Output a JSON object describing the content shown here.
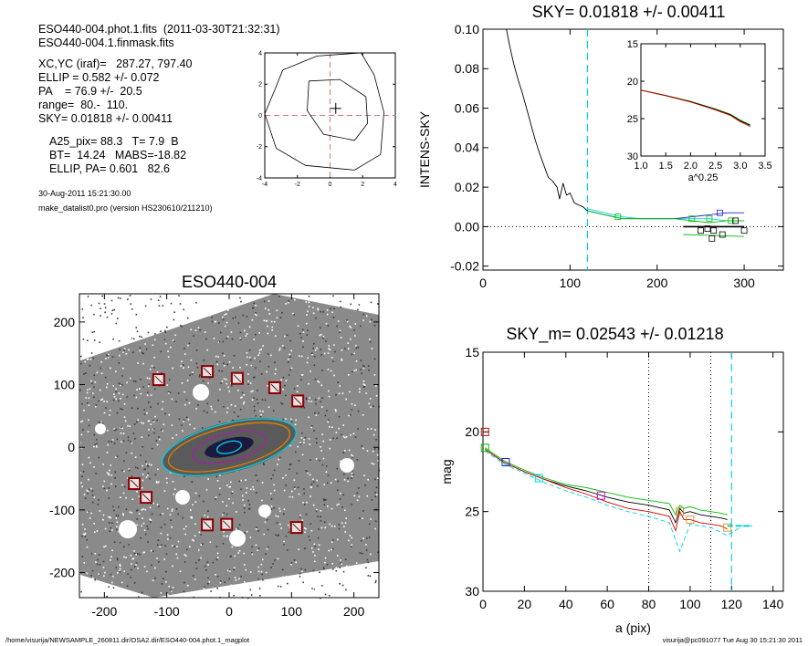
{
  "header": {
    "file_line": "ESO440-004.phot.1.fits  (2011-03-30T21:32:31)",
    "mask_line": "ESO440-004.1.finmask.fits",
    "xcyc": "XC,YC (iraf)=   287.27, 797.40",
    "ellip": "ELLIP = 0.582 +/- 0.072",
    "pa": "PA    = 76.9 +/-  20.5",
    "range": "range=  80.-  110.",
    "sky": "SKY= 0.01818 +/- 0.00411",
    "a25": "A25_pix= 88.3   T= 7.9  B",
    "bt": "BT=  14.24   MABS=-18.82",
    "ellip_pa": "ELLIP, PA= 0.601   82.6",
    "date": "30-Aug-2011 15:21:30.00",
    "program": "make_datalist0.pro (version HS230610/211210)"
  },
  "footer": {
    "path": "/home/visurija/NEWSAMPLE_260811.dir/OSA2.dir/ESO440-004.phot.1_magplot",
    "user": "visurija@pc091077  Tue Aug 30 15:21:30 2011"
  },
  "colors": {
    "axis": "#000000",
    "dashed_red": "#e07070",
    "cyan": "#00d0e0",
    "green": "#00c000",
    "red": "#d00000",
    "blue": "#2020d0",
    "magenta": "#d000d0",
    "orange": "#e08000"
  },
  "chart_data": [
    {
      "id": "center-contour",
      "type": "line",
      "title": "",
      "xlim": [
        -4,
        4
      ],
      "ylim": [
        -4,
        4
      ],
      "xticks": [
        -4,
        -2,
        0,
        2,
        4
      ],
      "yticks": [
        -4,
        -2,
        0,
        2,
        4
      ],
      "contours": [
        [
          [
            -1.3,
            2.2
          ],
          [
            0.6,
            2.3
          ],
          [
            2.2,
            1.2
          ],
          [
            2.3,
            -0.5
          ],
          [
            1.5,
            -1.6
          ],
          [
            -0.4,
            -1.2
          ],
          [
            -1.4,
            0.3
          ],
          [
            -1.3,
            2.2
          ]
        ],
        [
          [
            -2.9,
            2.9
          ],
          [
            -0.8,
            3.8
          ],
          [
            1.9,
            4
          ],
          [
            2.7,
            2.6
          ],
          [
            3.3,
            0.2
          ],
          [
            3.1,
            -2.5
          ],
          [
            1.5,
            -3.5
          ],
          [
            -1.5,
            -3.2
          ],
          [
            -3.3,
            -2.1
          ],
          [
            -4,
            0.1
          ],
          [
            -3.4,
            1.6
          ],
          [
            -2.9,
            2.9
          ]
        ]
      ],
      "center": [
        0.35,
        0.45
      ]
    },
    {
      "id": "sky-profile",
      "type": "line",
      "title": "SKY= 0.01818 +/- 0.00411",
      "xlabel": "",
      "ylabel": "INTENS-SKY",
      "xlim": [
        0,
        345
      ],
      "ylim": [
        -0.022,
        0.1
      ],
      "xticks": [
        0,
        100,
        200,
        300
      ],
      "yticks": [
        -0.02,
        0.0,
        0.02,
        0.04,
        0.06,
        0.08,
        0.1
      ],
      "ytick_labels": [
        "-0.02",
        "0.00",
        "0.02",
        "0.04",
        "0.06",
        "0.08",
        "0.10"
      ],
      "sky_marker_x": 120,
      "series": [
        {
          "x": [
            27,
            30,
            35,
            40,
            45,
            50,
            55,
            60,
            65,
            70,
            75,
            80,
            85,
            88,
            92,
            96,
            100,
            105,
            110,
            115,
            120
          ],
          "y": [
            0.1,
            0.093,
            0.083,
            0.075,
            0.068,
            0.06,
            0.052,
            0.044,
            0.037,
            0.031,
            0.025,
            0.023,
            0.02,
            0.014,
            0.022,
            0.016,
            0.017,
            0.012,
            0.011,
            0.01,
            0.008
          ]
        },
        {
          "x": [
            120,
            140,
            160,
            180,
            200,
            220,
            240,
            260,
            280,
            300
          ],
          "y": [
            0.009,
            0.007,
            0.005,
            0.004,
            0.004,
            0.004,
            0.004,
            0.004,
            0.003,
            0.003
          ],
          "color": "cyan"
        },
        {
          "x": [
            120,
            140,
            160,
            180,
            200,
            220,
            240,
            260,
            280,
            300
          ],
          "y": [
            0.008,
            0.006,
            0.004,
            0.004,
            0.004,
            0.004,
            0.005,
            0.006,
            0.007,
            0.007
          ],
          "color": "blue"
        },
        {
          "x": [
            120,
            140,
            160,
            180,
            200,
            220,
            240,
            260,
            280,
            300
          ],
          "y": [
            0.008,
            0.006,
            0.004,
            0.004,
            0.004,
            0.004,
            0.003,
            0.002,
            0.003,
            0.003
          ],
          "color": "green"
        },
        {
          "x": [
            230,
            300
          ],
          "y": [
            0.0,
            0.0
          ],
          "color": "black"
        },
        {
          "x": [
            230,
            300
          ],
          "y": [
            -0.004,
            -0.005
          ],
          "color": "green"
        }
      ],
      "inset": {
        "xlabel": "a^0.25",
        "xlim": [
          1.0,
          3.5
        ],
        "ylim": [
          15,
          30
        ],
        "xticks": [
          1.0,
          1.5,
          2.0,
          2.5,
          3.0,
          3.5
        ],
        "xtick_labels": [
          "1.0",
          "1.5",
          "2.0",
          "2.5",
          "3.0",
          "3.5"
        ],
        "yticks": [
          15,
          20,
          25,
          30
        ],
        "x": [
          1.0,
          1.5,
          2.0,
          2.5,
          2.8,
          3.0,
          3.2
        ],
        "y": [
          21.2,
          21.9,
          22.7,
          23.7,
          24.4,
          25.2,
          25.8
        ]
      }
    },
    {
      "id": "galaxy-image",
      "type": "scatter",
      "title": "ESO440-004",
      "xlim": [
        -240,
        240
      ],
      "ylim": [
        -240,
        245
      ],
      "xticks": [
        -200,
        -100,
        0,
        100,
        200
      ],
      "yticks": [
        -200,
        -100,
        0,
        100,
        200
      ],
      "mask_boxes": [
        [
          -113,
          108
        ],
        [
          -35,
          121
        ],
        [
          13,
          110
        ],
        [
          73,
          95
        ],
        [
          110,
          74
        ],
        [
          -152,
          -58
        ],
        [
          -133,
          -80
        ],
        [
          -35,
          -124
        ],
        [
          -4,
          -123
        ],
        [
          108,
          -128
        ]
      ],
      "ellipses": [
        {
          "a": 110,
          "b": 38,
          "pa_deg": -14,
          "color": "cyan"
        },
        {
          "a": 100,
          "b": 32,
          "pa_deg": -14,
          "color": "orange"
        },
        {
          "a": 60,
          "b": 22,
          "pa_deg": -14,
          "color": "magenta"
        },
        {
          "a": 20,
          "b": 9,
          "pa_deg": -14,
          "color": "cyan"
        }
      ]
    },
    {
      "id": "mag-profile",
      "type": "line",
      "title": "SKY_m=  0.02543 +/- 0.01218",
      "xlabel": "a (pix)",
      "ylabel": "mag",
      "xlim": [
        0,
        145
      ],
      "ylim": [
        15,
        30
      ],
      "xticks": [
        0,
        20,
        40,
        60,
        80,
        100,
        120,
        140
      ],
      "yticks": [
        15,
        20,
        25,
        30
      ],
      "dotted_x": [
        80,
        110
      ],
      "dashed_x": 120,
      "markers": [
        {
          "x": 1,
          "y": 20.0,
          "color": "red"
        },
        {
          "x": 1,
          "y": 21.0,
          "color": "green"
        },
        {
          "x": 11,
          "y": 21.9,
          "color": "blue"
        },
        {
          "x": 27,
          "y": 22.9,
          "color": "cyan"
        },
        {
          "x": 57,
          "y": 24.0,
          "color": "magenta"
        }
      ],
      "series": [
        {
          "color": "black",
          "x": [
            1,
            10,
            20,
            30,
            40,
            50,
            60,
            70,
            80,
            90,
            93,
            95,
            97,
            100,
            105,
            110,
            115,
            118
          ],
          "y": [
            21.1,
            21.9,
            22.5,
            23.0,
            23.4,
            23.7,
            24.1,
            24.4,
            24.6,
            24.9,
            25.7,
            24.8,
            25.1,
            25.0,
            25.2,
            25.3,
            25.4,
            25.5
          ]
        },
        {
          "color": "red",
          "x": [
            1,
            10,
            20,
            30,
            40,
            50,
            60,
            70,
            80,
            90,
            93,
            95,
            97,
            100,
            105,
            110,
            115,
            118
          ],
          "y": [
            21.1,
            21.9,
            22.5,
            23.0,
            23.5,
            23.9,
            24.4,
            24.8,
            25.0,
            25.3,
            26.2,
            25.0,
            25.5,
            25.5,
            25.7,
            25.8,
            25.9,
            26.1
          ]
        },
        {
          "color": "green",
          "x": [
            1,
            10,
            20,
            30,
            40,
            50,
            60,
            70,
            80,
            90,
            93,
            95,
            97,
            100,
            105,
            110,
            115,
            118
          ],
          "y": [
            21.0,
            21.8,
            22.4,
            22.9,
            23.3,
            23.5,
            23.8,
            24.1,
            24.3,
            24.5,
            25.2,
            24.6,
            24.8,
            24.7,
            24.9,
            25.0,
            25.1,
            25.2
          ]
        },
        {
          "color": "cyan",
          "dashed": true,
          "x": [
            1,
            10,
            20,
            30,
            40,
            50,
            60,
            70,
            80,
            90,
            95,
            100,
            110,
            118,
            125,
            130
          ],
          "y": [
            21.2,
            22.0,
            22.6,
            23.2,
            23.7,
            24.1,
            24.6,
            25.0,
            25.3,
            25.7,
            27.5,
            25.8,
            26.0,
            26.5,
            25.9,
            25.9
          ]
        }
      ]
    }
  ]
}
